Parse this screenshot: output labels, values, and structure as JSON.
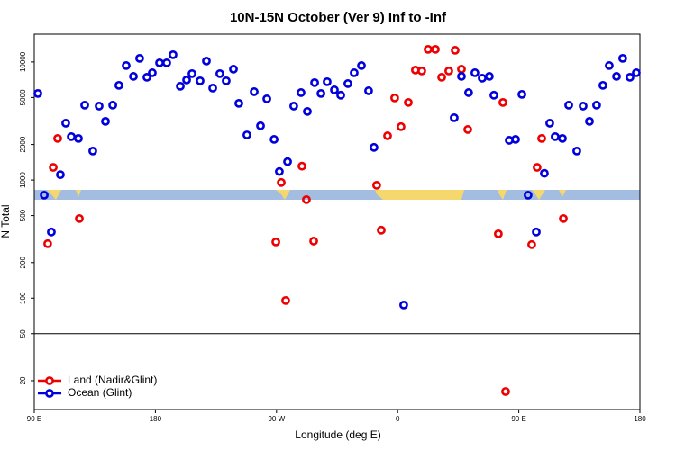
{
  "chart_data": {
    "type": "scatter",
    "title": "10N-15N October (Ver 9)   Inf to -Inf",
    "x_label": "Longitude (deg E)",
    "y_label": "N Total",
    "xlim": [
      90,
      540
    ],
    "xticks": [
      {
        "value": 90,
        "label": "90 E"
      },
      {
        "value": 180,
        "label": "180"
      },
      {
        "value": 270,
        "label": "90 W"
      },
      {
        "value": 360,
        "label": "0"
      },
      {
        "value": 450,
        "label": "90 E"
      },
      {
        "value": 540,
        "label": "180"
      }
    ],
    "ylim": [
      11.4,
      17200
    ],
    "y_scale": "log",
    "yticks": [
      20,
      50,
      100,
      200,
      500,
      1000,
      2000,
      5000,
      10000
    ],
    "reference_line": 50,
    "legend_position": "lower left",
    "series": [
      {
        "name": "Land (Nadir&Glint)",
        "color": "#ee0000",
        "x": [
          100,
          104.1,
          107.4,
          123.5,
          269.5,
          273.5,
          276.8,
          288.9,
          292.2,
          297.6,
          344.4,
          347.8,
          352.5,
          357.8,
          362.5,
          367.9,
          373.2,
          377.9,
          382.6,
          388,
          392.7,
          398,
          402.7,
          407.4,
          412.1,
          434.8,
          438.2,
          440.2,
          459.6,
          463.6,
          467,
          483.1
        ],
        "values": [
          289,
          1280,
          2250,
          472,
          299,
          953,
          95.5,
          1310,
          682,
          304,
          903,
          376,
          2370,
          4960,
          2830,
          4540,
          8540,
          8390,
          12790,
          12790,
          7420,
          8390,
          12560,
          8690,
          2680,
          350,
          4540,
          16.2,
          284,
          1280,
          2250,
          472
        ]
      },
      {
        "name": "Ocean (Glint)",
        "color": "#0000dd",
        "x": [
          92.7,
          97.4,
          102.7,
          109.4,
          113.4,
          117.5,
          122.8,
          127.5,
          133.5,
          138.2,
          142.9,
          148.3,
          152.9,
          158.3,
          163.7,
          168.3,
          173.7,
          177.7,
          183.1,
          188.4,
          193.1,
          198.5,
          203.2,
          207.2,
          213.2,
          217.9,
          222.6,
          227.9,
          232.6,
          238,
          242,
          248,
          253.4,
          258.1,
          262.8,
          268.2,
          272.1,
          278.2,
          282.8,
          288.2,
          292.9,
          298.3,
          303,
          307.6,
          313,
          317.7,
          323,
          327.7,
          333.1,
          338.4,
          342.4,
          364.5,
          402,
          407.4,
          412.7,
          417.4,
          422.8,
          428.1,
          431.5,
          442.9,
          447.6,
          452.3,
          456.9,
          463,
          469,
          473,
          477,
          482.4,
          487.1,
          493.1,
          497.8,
          502.5,
          507.8,
          512.5,
          517.2,
          522.6,
          527.2,
          532.6,
          537.3
        ],
        "values": [
          5410,
          745,
          363,
          1110,
          3030,
          2330,
          2250,
          4310,
          1760,
          4230,
          3140,
          4310,
          6340,
          9320,
          7550,
          10730,
          7420,
          8100,
          9830,
          9830,
          11510,
          6230,
          7040,
          7960,
          6920,
          10180,
          6010,
          7960,
          6920,
          8690,
          4460,
          2410,
          5600,
          2880,
          4870,
          2210,
          1180,
          1430,
          4230,
          5500,
          3810,
          6680,
          5410,
          6800,
          5800,
          5230,
          6560,
          8100,
          9320,
          5700,
          1890,
          87.5,
          3370,
          7550,
          5500,
          8100,
          7290,
          7550,
          5230,
          2170,
          2210,
          5320,
          745,
          363,
          1140,
          3030,
          2330,
          2250,
          4310,
          1760,
          4230,
          3140,
          4310,
          6340,
          9320,
          7550,
          10730,
          7420,
          8100
        ]
      }
    ]
  }
}
